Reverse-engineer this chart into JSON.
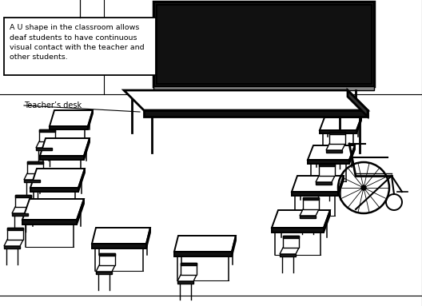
{
  "background_color": "#ffffff",
  "annotation_text": "A U shape in the classroom allows\ndeaf students to have continuous\nvisual contact with the teacher and\nother students.",
  "teachers_desk_label": "Teacher’s desk",
  "fig_width": 5.28,
  "fig_height": 3.83,
  "line_color": "#000000"
}
